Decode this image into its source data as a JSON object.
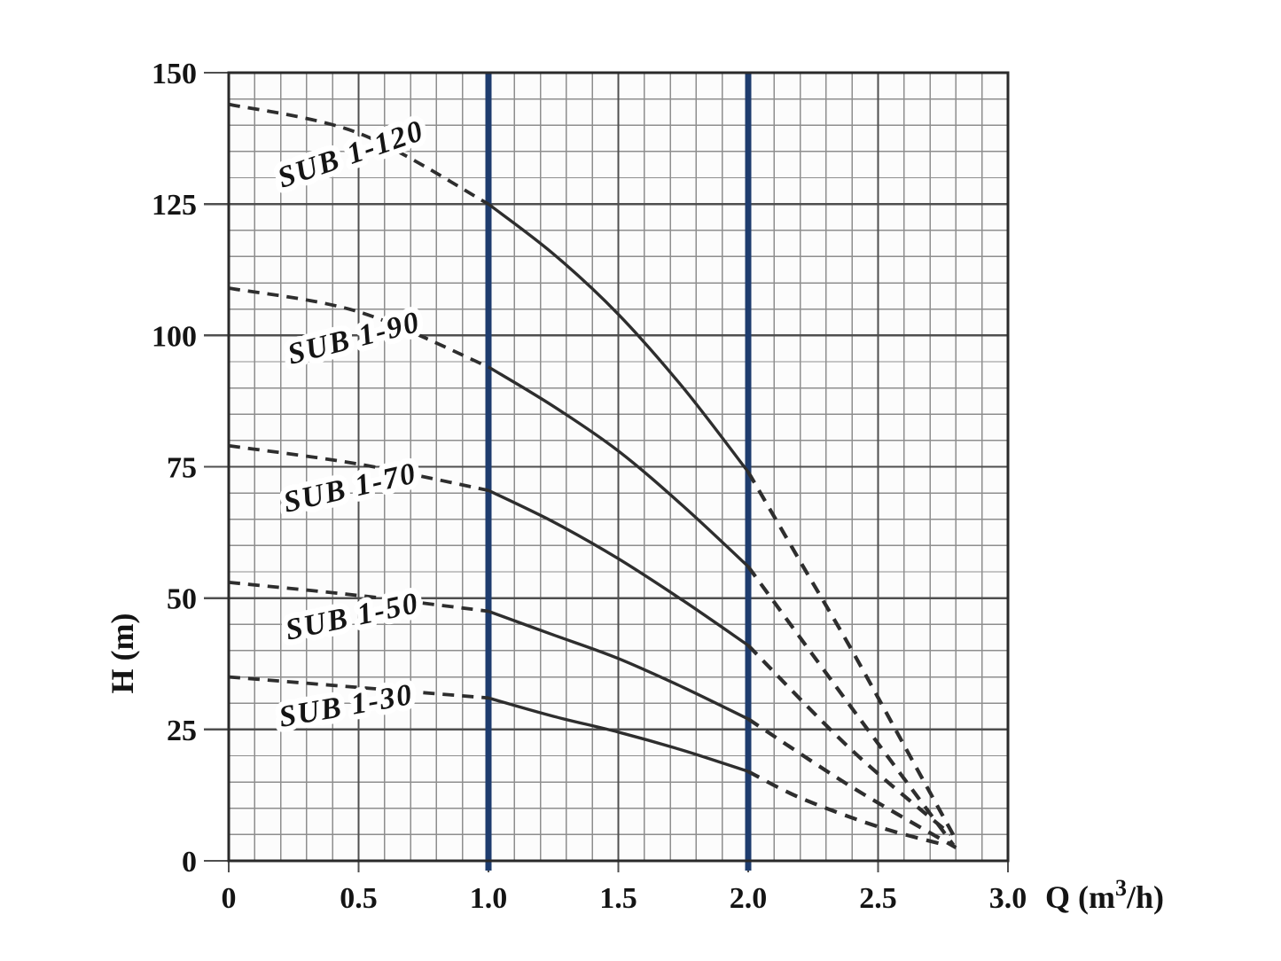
{
  "page": {
    "background": "#ffffff"
  },
  "chart_data": {
    "type": "line",
    "xlabel": "Q (m³/h)",
    "xlabel_parts": {
      "base": "Q (m",
      "sup": "3",
      "rest": "/h)"
    },
    "ylabel": "H (m)",
    "xlim": [
      0,
      3.0
    ],
    "ylim": [
      0,
      150
    ],
    "x_ticks": [
      0,
      0.5,
      1.0,
      1.5,
      2.0,
      2.5,
      3.0
    ],
    "x_tick_labels": [
      "0",
      "0.5",
      "1.0",
      "1.5",
      "2.0",
      "2.5",
      "3.0"
    ],
    "y_ticks": [
      0,
      25,
      50,
      75,
      100,
      125,
      150
    ],
    "y_tick_labels": [
      "0",
      "25",
      "50",
      "75",
      "100",
      "125",
      "150"
    ],
    "x_minor_step": 0.1,
    "y_minor_step": 5,
    "grid": true,
    "legend_position": "labels-on-curves",
    "operating_range_lines": {
      "x_values": [
        1.0,
        2.0
      ],
      "color": "#1e3c6e"
    },
    "colors": {
      "curve": "#2e2e2e",
      "major_grid": "#4f4f4f",
      "minor_grid": "#8e8e8e",
      "border": "#2a2a2a",
      "text": "#141414",
      "range_line": "#1e3c6e",
      "plot_background": "#fcfcfc"
    },
    "series": [
      {
        "name": "SUB 1-120",
        "label": {
          "text": "SUB 1-120",
          "q": 0.474,
          "h": 134,
          "angle": -19
        },
        "dashed_head": [
          [
            0,
            144
          ],
          [
            0.5,
            138.5
          ],
          [
            1.0,
            125
          ]
        ],
        "solid": [
          [
            1.0,
            125
          ],
          [
            1.25,
            115.5
          ],
          [
            1.5,
            104
          ],
          [
            1.75,
            90
          ],
          [
            2.0,
            74
          ]
        ],
        "dashed_tail": [
          [
            2.0,
            74
          ],
          [
            2.2,
            57
          ],
          [
            2.4,
            40
          ],
          [
            2.6,
            22
          ],
          [
            2.8,
            4
          ]
        ]
      },
      {
        "name": "SUB 1-90",
        "label": {
          "text": "SUB 1-90",
          "q": 0.485,
          "h": 99,
          "angle": -14.5
        },
        "dashed_head": [
          [
            0,
            109
          ],
          [
            0.5,
            104.5
          ],
          [
            1.0,
            94
          ]
        ],
        "solid": [
          [
            1.0,
            94
          ],
          [
            1.25,
            86.5
          ],
          [
            1.5,
            78
          ],
          [
            1.75,
            67.5
          ],
          [
            2.0,
            56
          ]
        ],
        "dashed_tail": [
          [
            2.0,
            56
          ],
          [
            2.4,
            29
          ],
          [
            2.79,
            3
          ]
        ]
      },
      {
        "name": "SUB 1-70",
        "label": {
          "text": "SUB 1-70",
          "q": 0.47,
          "h": 70.5,
          "angle": -13
        },
        "dashed_head": [
          [
            0,
            79
          ],
          [
            0.5,
            75.5
          ],
          [
            1.0,
            70.5
          ]
        ],
        "solid": [
          [
            1.0,
            70.5
          ],
          [
            1.25,
            64.5
          ],
          [
            1.5,
            57.5
          ],
          [
            1.75,
            49.5
          ],
          [
            2.0,
            41
          ]
        ],
        "dashed_tail": [
          [
            2.0,
            41
          ],
          [
            2.4,
            21
          ],
          [
            2.78,
            5
          ]
        ]
      },
      {
        "name": "SUB 1-50",
        "label": {
          "text": "SUB 1-50",
          "q": 0.478,
          "h": 46,
          "angle": -12
        },
        "dashed_head": [
          [
            0,
            53
          ],
          [
            0.5,
            50.5
          ],
          [
            1.0,
            47.5
          ]
        ],
        "solid": [
          [
            1.0,
            47.5
          ],
          [
            1.25,
            43
          ],
          [
            1.5,
            38.5
          ],
          [
            1.75,
            33
          ],
          [
            2.0,
            27
          ]
        ],
        "dashed_tail": [
          [
            2.0,
            27
          ],
          [
            2.4,
            14
          ],
          [
            2.8,
            2.5
          ]
        ]
      },
      {
        "name": "SUB 1-30",
        "label": {
          "text": "SUB 1-30",
          "q": 0.454,
          "h": 29,
          "angle": -10
        },
        "dashed_head": [
          [
            0,
            35
          ],
          [
            0.5,
            33
          ],
          [
            1.0,
            31
          ]
        ],
        "solid": [
          [
            1.0,
            31
          ],
          [
            1.25,
            27.5
          ],
          [
            1.5,
            24.5
          ],
          [
            1.75,
            21
          ],
          [
            2.0,
            17
          ]
        ],
        "dashed_tail": [
          [
            2.0,
            17
          ],
          [
            2.2,
            12
          ],
          [
            2.5,
            6.5
          ],
          [
            2.76,
            3
          ]
        ]
      }
    ]
  }
}
